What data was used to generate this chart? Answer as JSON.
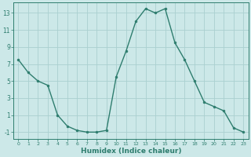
{
  "x": [
    0,
    1,
    2,
    3,
    4,
    5,
    6,
    7,
    8,
    9,
    10,
    11,
    12,
    13,
    14,
    15,
    16,
    17,
    18,
    19,
    20,
    21,
    22,
    23
  ],
  "y": [
    7.5,
    6.0,
    5.0,
    4.5,
    1.0,
    -0.3,
    -0.8,
    -1.0,
    -1.0,
    -0.8,
    5.5,
    8.5,
    12.0,
    13.5,
    13.0,
    13.5,
    9.5,
    7.5,
    5.0,
    2.5,
    2.0,
    1.5,
    -0.5,
    -1.0
  ],
  "line_color": "#2e7d6e",
  "marker": "o",
  "marker_size": 2,
  "bg_color": "#cce8e8",
  "grid_color": "#aad0d0",
  "xlabel": "Humidex (Indice chaleur)",
  "yticks": [
    -1,
    1,
    3,
    5,
    7,
    9,
    11,
    13
  ],
  "xticks": [
    0,
    1,
    2,
    3,
    4,
    5,
    6,
    7,
    8,
    9,
    10,
    11,
    12,
    13,
    14,
    15,
    16,
    17,
    18,
    19,
    20,
    21,
    22,
    23
  ],
  "ylim": [
    -1.8,
    14.2
  ],
  "xlim": [
    -0.5,
    23.5
  ],
  "tick_color": "#2e7d6e",
  "label_color": "#2e7d6e"
}
